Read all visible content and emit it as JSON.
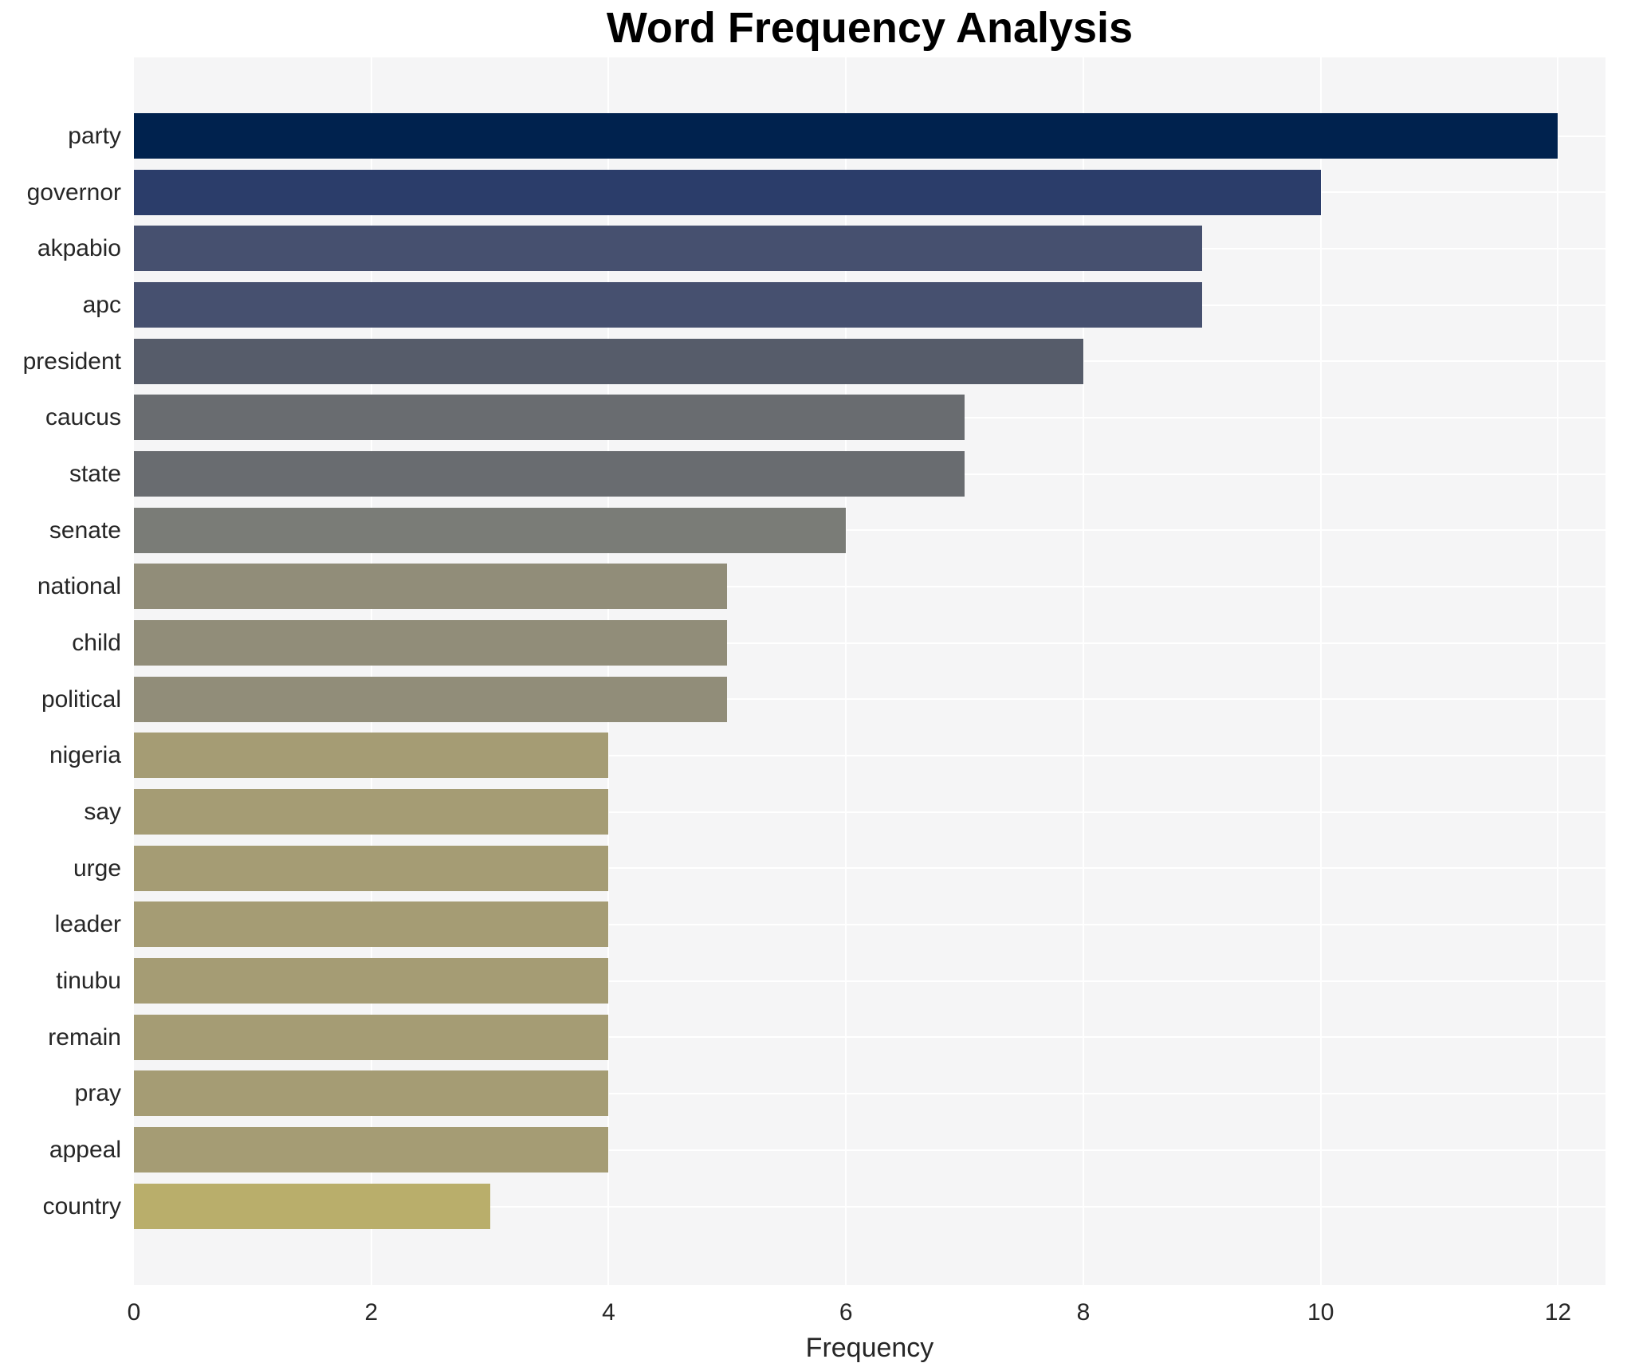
{
  "title": "Word Frequency Analysis",
  "chart_data": {
    "type": "bar",
    "orientation": "horizontal",
    "title": "Word Frequency Analysis",
    "xlabel": "Frequency",
    "ylabel": "",
    "categories": [
      "party",
      "governor",
      "akpabio",
      "apc",
      "president",
      "caucus",
      "state",
      "senate",
      "national",
      "child",
      "political",
      "nigeria",
      "say",
      "urge",
      "leader",
      "tinubu",
      "remain",
      "pray",
      "appeal",
      "country"
    ],
    "values": [
      12,
      10,
      9,
      9,
      8,
      7,
      7,
      6,
      5,
      5,
      5,
      4,
      4,
      4,
      4,
      4,
      4,
      4,
      4,
      3
    ],
    "bar_colors": [
      "#00224e",
      "#2b3d6a",
      "#46506f",
      "#46506f",
      "#565c6a",
      "#696c70",
      "#696c70",
      "#7a7c77",
      "#918d79",
      "#918d79",
      "#918d79",
      "#a59c74",
      "#a59c74",
      "#a59c74",
      "#a59c74",
      "#a59c74",
      "#a59c74",
      "#a59c74",
      "#a59c74",
      "#b9ae6b"
    ],
    "xticks": [
      0,
      2,
      4,
      6,
      8,
      10,
      12
    ],
    "xlim": [
      0,
      12.4
    ],
    "grid": true,
    "legend": false,
    "colormap": "cividis",
    "plot_background": "#f5f5f6",
    "grid_color": "#ffffff",
    "figure_background": "#ffffff",
    "text_color": "#262626",
    "title_color": "#000000"
  }
}
